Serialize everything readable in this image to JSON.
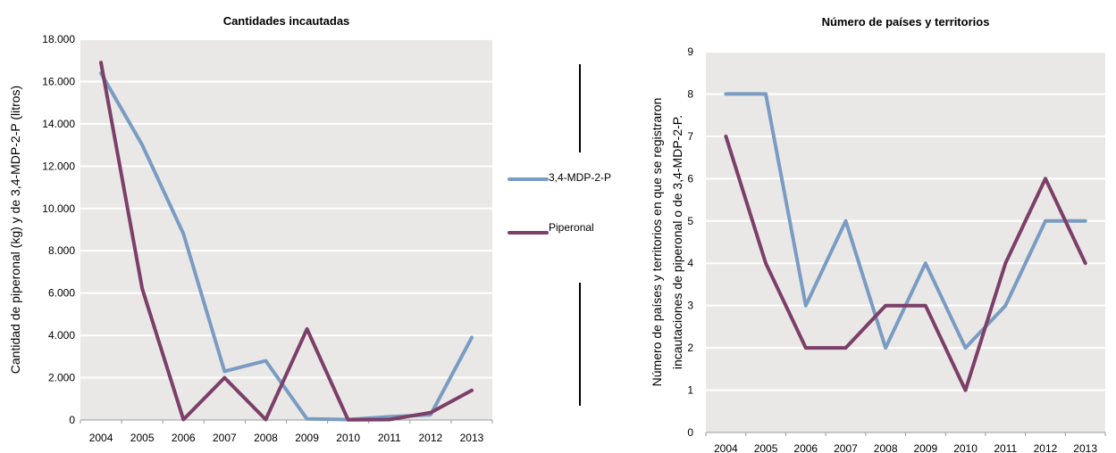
{
  "colors": {
    "mdp": "#7a9cc2",
    "pip": "#7b3f68",
    "plot_bg": "#e9e8e6",
    "grid": "#ffffff"
  },
  "legend": {
    "mdp": "3,4-MDP-2-P",
    "pip": "Piperonal"
  },
  "chart_data": [
    {
      "type": "line",
      "title": "Cantidades incautadas",
      "ylabel": "Cantidad de piperonal (kg) y de 3,4-MDP-2-P (litros)",
      "ylim": [
        0,
        18000
      ],
      "yticks": [
        "0",
        "2.000",
        "4.000",
        "6.000",
        "8.000",
        "10.000",
        "12.000",
        "14.000",
        "16.000",
        "18.000"
      ],
      "categories": [
        "2004",
        "2005",
        "2006",
        "2007",
        "2008",
        "2009",
        "2010",
        "2011",
        "2012",
        "2013"
      ],
      "series": [
        {
          "name": "3,4-MDP-2-P",
          "values": [
            16400,
            13000,
            8800,
            2300,
            2800,
            50,
            20,
            150,
            250,
            3900
          ]
        },
        {
          "name": "Piperonal",
          "values": [
            16900,
            6200,
            20,
            2000,
            20,
            4300,
            10,
            20,
            350,
            1400
          ]
        }
      ]
    },
    {
      "type": "line",
      "title": "Número de países y territorios",
      "ylabel_line1": "Número de países y territorios en que se registraron",
      "ylabel_line2": "incautaciones de piperonal o de 3,4-MDP-2-P.",
      "ylim": [
        0,
        9
      ],
      "yticks": [
        "0",
        "1",
        "2",
        "3",
        "4",
        "5",
        "6",
        "7",
        "8",
        "9"
      ],
      "categories": [
        "2004",
        "2005",
        "2006",
        "2007",
        "2008",
        "2009",
        "2010",
        "2011",
        "2012",
        "2013"
      ],
      "series": [
        {
          "name": "3,4-MDP-2-P",
          "values": [
            8,
            8,
            3,
            5,
            2,
            4,
            2,
            3,
            5,
            5
          ]
        },
        {
          "name": "Piperonal",
          "values": [
            7,
            4,
            2,
            2,
            3,
            3,
            1,
            4,
            6,
            4
          ]
        }
      ]
    }
  ]
}
